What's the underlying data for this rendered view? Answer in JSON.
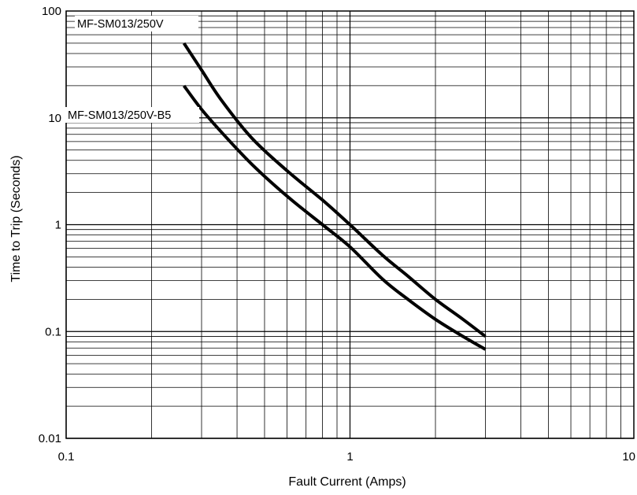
{
  "chart_data": {
    "type": "line",
    "xlabel": "Fault Current  (Amps)",
    "ylabel": "Time to Trip (Seconds)",
    "x_scale": "log",
    "y_scale": "log",
    "xlim": [
      0.1,
      10
    ],
    "ylim": [
      0.01,
      100
    ],
    "x_ticks": [
      "0.1",
      "1",
      "10"
    ],
    "y_ticks": [
      "0.01",
      "0.1",
      "1",
      "10",
      "100"
    ],
    "grid": true,
    "series": [
      {
        "name": "MF-SM013/250V",
        "x": [
          0.26,
          0.3,
          0.35,
          0.45,
          0.6,
          0.8,
          1.0,
          1.3,
          1.6,
          2.0,
          2.5,
          3.0
        ],
        "y": [
          50,
          28,
          15,
          6.5,
          3.2,
          1.7,
          1.0,
          0.52,
          0.33,
          0.2,
          0.13,
          0.09
        ]
      },
      {
        "name": "MF-SM013/250V-B5",
        "x": [
          0.26,
          0.3,
          0.35,
          0.45,
          0.6,
          0.8,
          1.0,
          1.3,
          1.6,
          2.0,
          2.5,
          3.0
        ],
        "y": [
          20,
          12,
          7.5,
          3.7,
          1.85,
          1.0,
          0.62,
          0.31,
          0.2,
          0.13,
          0.09,
          0.068
        ]
      }
    ]
  }
}
